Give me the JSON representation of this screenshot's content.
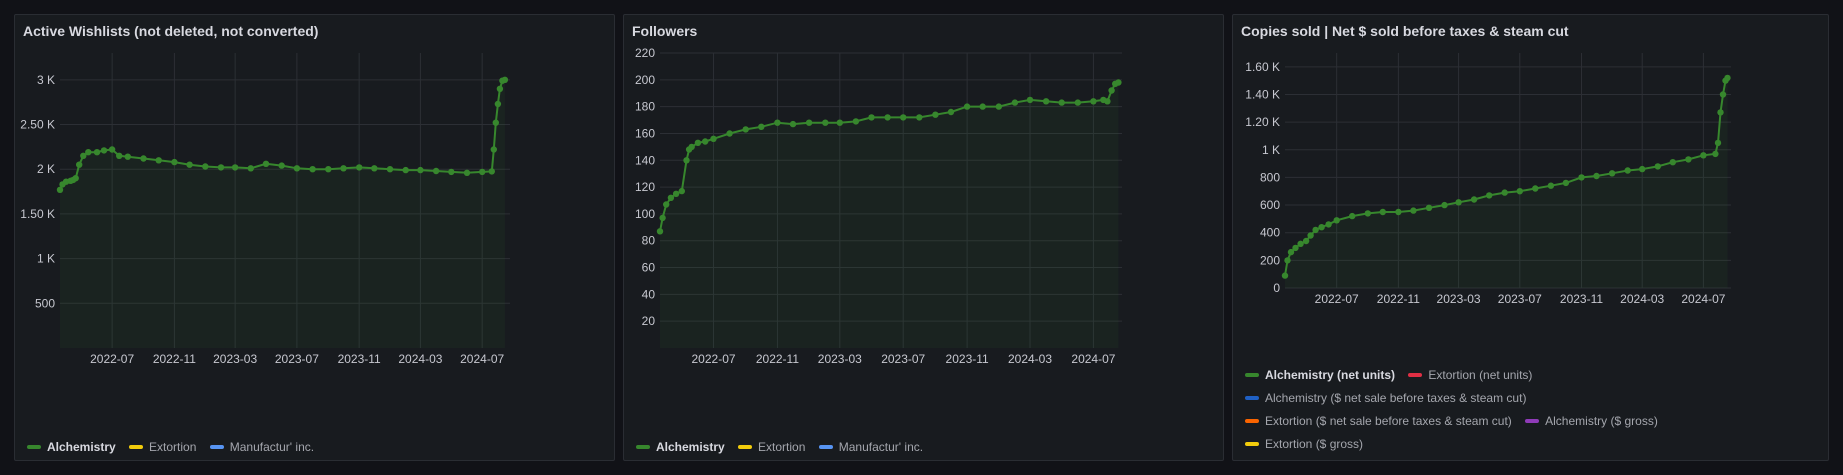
{
  "panels": [
    {
      "title": "Active Wishlists (not deleted, not converted)",
      "legend": [
        {
          "label": "Alchemistry",
          "color": "#37872d",
          "active": true
        },
        {
          "label": "Extortion",
          "color": "#f2cc0c",
          "active": false
        },
        {
          "label": "Manufactur' inc.",
          "color": "#5794f2",
          "active": false
        }
      ]
    },
    {
      "title": "Followers",
      "legend": [
        {
          "label": "Alchemistry",
          "color": "#37872d",
          "active": true
        },
        {
          "label": "Extortion",
          "color": "#f2cc0c",
          "active": false
        },
        {
          "label": "Manufactur' inc.",
          "color": "#5794f2",
          "active": false
        }
      ]
    },
    {
      "title": "Copies sold | Net $ sold before taxes & steam cut",
      "legend_rows": [
        [
          {
            "label": "Alchemistry (net units)",
            "color": "#37872d",
            "active": true
          },
          {
            "label": "Extortion (net units)",
            "color": "#e02f44",
            "active": false
          }
        ],
        [
          {
            "label": "Alchemistry ($ net sale before taxes & steam cut)",
            "color": "#1f60c4",
            "active": false
          }
        ],
        [
          {
            "label": "Extortion ($ net sale before taxes & steam cut)",
            "color": "#fa6400",
            "active": false
          },
          {
            "label": "Alchemistry ($ gross)",
            "color": "#8f3bb8",
            "active": false
          }
        ],
        [
          {
            "label": "Extortion ($ gross)",
            "color": "#f2cc0c",
            "active": false
          }
        ]
      ]
    }
  ],
  "chart_data": [
    {
      "type": "line",
      "title": "Active Wishlists (not deleted, not converted)",
      "x_ticks": [
        "2022-07",
        "2022-11",
        "2023-03",
        "2023-07",
        "2023-11",
        "2024-03",
        "2024-07"
      ],
      "y_ticks": [
        500,
        1000,
        1500,
        2000,
        2500,
        3000
      ],
      "y_tick_labels": [
        "500",
        "1 K",
        "1.50 K",
        "2 K",
        "2.50 K",
        "3 K"
      ],
      "xlim": [
        "2022-03-20",
        "2024-08-25"
      ],
      "ylim": [
        0,
        3300
      ],
      "series": [
        {
          "name": "Alchemistry",
          "color": "#37872d",
          "x": [
            "2022-03-20",
            "2022-03-25",
            "2022-04-01",
            "2022-04-10",
            "2022-04-15",
            "2022-04-20",
            "2022-04-27",
            "2022-05-05",
            "2022-05-15",
            "2022-06-01",
            "2022-06-15",
            "2022-07-01",
            "2022-07-15",
            "2022-08-01",
            "2022-09-01",
            "2022-10-01",
            "2022-11-01",
            "2022-12-01",
            "2023-01-01",
            "2023-02-01",
            "2023-03-01",
            "2023-04-01",
            "2023-05-01",
            "2023-06-01",
            "2023-07-01",
            "2023-08-01",
            "2023-09-01",
            "2023-10-01",
            "2023-11-01",
            "2023-12-01",
            "2024-01-01",
            "2024-02-01",
            "2024-03-01",
            "2024-04-01",
            "2024-05-01",
            "2024-06-01",
            "2024-07-01",
            "2024-07-20",
            "2024-07-24",
            "2024-07-28",
            "2024-08-01",
            "2024-08-05",
            "2024-08-10",
            "2024-08-15"
          ],
          "values": [
            1770,
            1830,
            1860,
            1870,
            1880,
            1900,
            2050,
            2150,
            2190,
            2190,
            2210,
            2220,
            2150,
            2140,
            2120,
            2100,
            2080,
            2050,
            2030,
            2020,
            2020,
            2010,
            2060,
            2040,
            2010,
            2000,
            2000,
            2010,
            2020,
            2010,
            2000,
            1990,
            1990,
            1980,
            1970,
            1960,
            1970,
            1975,
            2220,
            2520,
            2730,
            2900,
            2990,
            3000
          ]
        }
      ]
    },
    {
      "type": "line",
      "title": "Followers",
      "x_ticks": [
        "2022-07",
        "2022-11",
        "2023-03",
        "2023-07",
        "2023-11",
        "2024-03",
        "2024-07"
      ],
      "y_ticks": [
        20,
        40,
        60,
        80,
        100,
        120,
        140,
        160,
        180,
        200,
        220
      ],
      "xlim": [
        "2022-03-20",
        "2024-08-25"
      ],
      "ylim": [
        0,
        220
      ],
      "series": [
        {
          "name": "Alchemistry",
          "color": "#37872d",
          "x": [
            "2022-03-20",
            "2022-03-25",
            "2022-04-01",
            "2022-04-10",
            "2022-04-20",
            "2022-05-01",
            "2022-05-10",
            "2022-05-15",
            "2022-05-20",
            "2022-06-01",
            "2022-06-15",
            "2022-07-01",
            "2022-08-01",
            "2022-09-01",
            "2022-10-01",
            "2022-11-01",
            "2022-12-01",
            "2023-01-01",
            "2023-02-01",
            "2023-03-01",
            "2023-04-01",
            "2023-05-01",
            "2023-06-01",
            "2023-07-01",
            "2023-08-01",
            "2023-09-01",
            "2023-10-01",
            "2023-11-01",
            "2023-12-01",
            "2024-01-01",
            "2024-02-01",
            "2024-03-01",
            "2024-04-01",
            "2024-05-01",
            "2024-06-01",
            "2024-07-01",
            "2024-07-20",
            "2024-07-28",
            "2024-08-05",
            "2024-08-12",
            "2024-08-18"
          ],
          "values": [
            87,
            97,
            107,
            112,
            115,
            117,
            140,
            148,
            150,
            153,
            154,
            156,
            160,
            163,
            165,
            168,
            167,
            168,
            168,
            168,
            169,
            172,
            172,
            172,
            172,
            174,
            176,
            180,
            180,
            180,
            183,
            185,
            184,
            183,
            183,
            184,
            185,
            184,
            192,
            197,
            198
          ]
        }
      ]
    },
    {
      "type": "line",
      "title": "Copies sold | Net $ sold before taxes & steam cut",
      "x_ticks": [
        "2022-07",
        "2022-11",
        "2023-03",
        "2023-07",
        "2023-11",
        "2024-03",
        "2024-07"
      ],
      "y_ticks": [
        0,
        200,
        400,
        600,
        800,
        1000,
        1200,
        1400,
        1600
      ],
      "y_tick_labels": [
        "0",
        "200",
        "400",
        "600",
        "800",
        "1 K",
        "1.20 K",
        "1.40 K",
        "1.60 K"
      ],
      "xlim": [
        "2022-03-20",
        "2024-08-25"
      ],
      "ylim": [
        0,
        1700
      ],
      "series": [
        {
          "name": "Alchemistry (net units)",
          "color": "#37872d",
          "x": [
            "2022-03-20",
            "2022-03-25",
            "2022-04-01",
            "2022-04-10",
            "2022-04-20",
            "2022-05-01",
            "2022-05-10",
            "2022-05-20",
            "2022-06-01",
            "2022-06-15",
            "2022-07-01",
            "2022-08-01",
            "2022-09-01",
            "2022-10-01",
            "2022-11-01",
            "2022-12-01",
            "2023-01-01",
            "2023-02-01",
            "2023-03-01",
            "2023-04-01",
            "2023-05-01",
            "2023-06-01",
            "2023-07-01",
            "2023-08-01",
            "2023-09-01",
            "2023-10-01",
            "2023-11-01",
            "2023-12-01",
            "2024-01-01",
            "2024-02-01",
            "2024-03-01",
            "2024-04-01",
            "2024-05-01",
            "2024-06-01",
            "2024-07-01",
            "2024-07-25",
            "2024-07-30",
            "2024-08-04",
            "2024-08-09",
            "2024-08-14",
            "2024-08-18"
          ],
          "values": [
            90,
            200,
            260,
            290,
            320,
            340,
            380,
            420,
            440,
            460,
            490,
            520,
            540,
            550,
            550,
            560,
            580,
            600,
            620,
            640,
            670,
            690,
            700,
            720,
            740,
            760,
            800,
            810,
            830,
            850,
            860,
            880,
            910,
            930,
            960,
            970,
            1050,
            1270,
            1400,
            1500,
            1520
          ]
        }
      ]
    }
  ]
}
